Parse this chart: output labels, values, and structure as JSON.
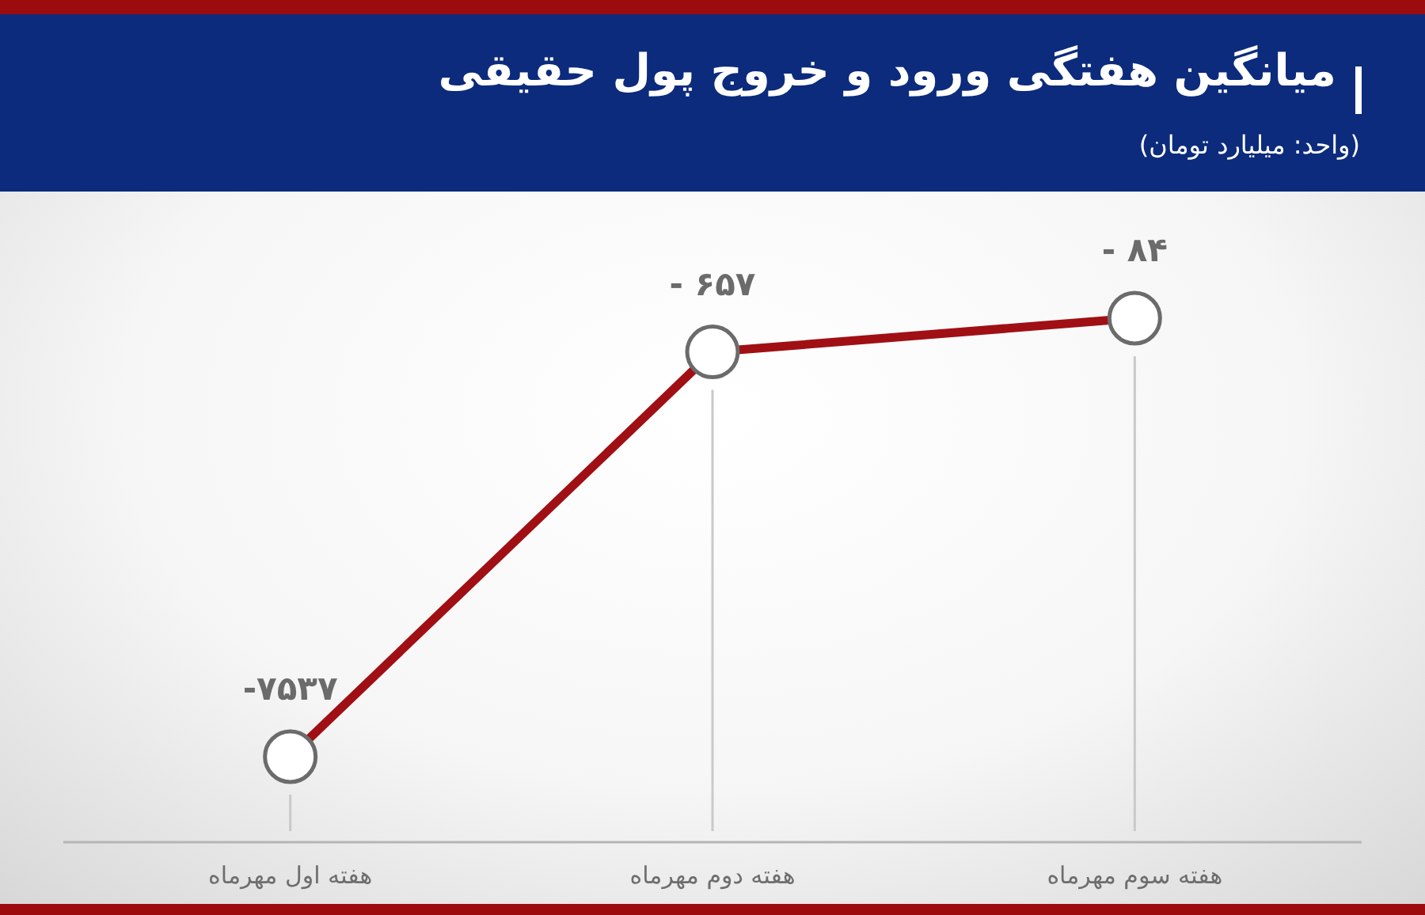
{
  "chart_data": {
    "type": "line",
    "title": "میانگین هفتگی ورود و خروج پول حقیقی",
    "subtitle": "(واحد: میلیارد تومان)",
    "categories": [
      "هفته اول مهرماه",
      "هفته دوم مهرماه",
      "هفته سوم مهرماه"
    ],
    "series": [
      {
        "color": "#a00f14",
        "values": [
          -7537,
          -657,
          -84
        ],
        "value_labels": [
          "-۷۵۳۷",
          "- ۶۵۷",
          "- ۸۴"
        ]
      }
    ],
    "marker": "circle",
    "grid": "x"
  }
}
